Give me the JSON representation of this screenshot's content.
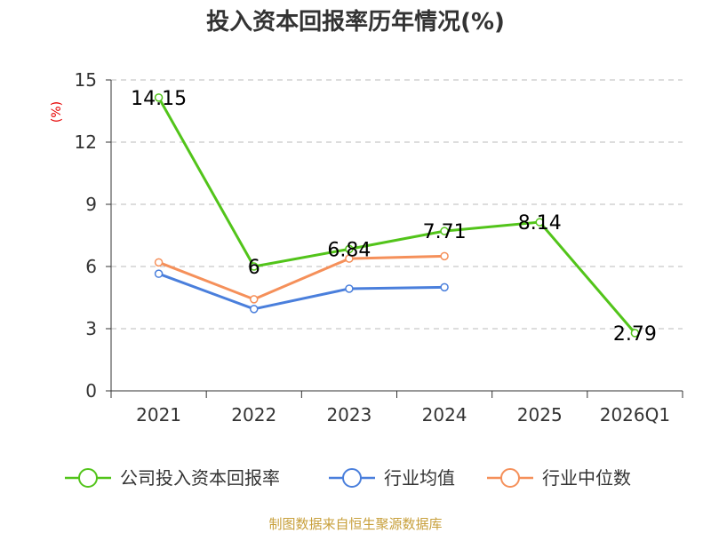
{
  "chart_data": {
    "type": "line",
    "title": "投入资本回报率历年情况(%)",
    "ylabel": "(%)",
    "xlabel": "",
    "categories": [
      "2021",
      "2022",
      "2023",
      "2024",
      "2025",
      "2026Q1"
    ],
    "yticks": [
      "0",
      "3",
      "6",
      "9",
      "12",
      "15"
    ],
    "ylim": [
      0,
      15
    ],
    "grid": true,
    "legend_position": "bottom",
    "series": [
      {
        "name": "公司投入资本回报率",
        "color": "#52c41a",
        "values": [
          14.15,
          6,
          6.84,
          7.71,
          8.14,
          2.79
        ],
        "labels": [
          "14.15",
          "6",
          "6.84",
          "7.71",
          "8.14",
          "2.79"
        ]
      },
      {
        "name": "行业均值",
        "color": "#4a7fdc",
        "values": [
          5.65,
          3.95,
          4.93,
          5.0,
          null,
          null
        ]
      },
      {
        "name": "行业中位数",
        "color": "#f5905a",
        "values": [
          6.2,
          4.42,
          6.38,
          6.5,
          null,
          null
        ]
      }
    ],
    "source": "制图数据来自恒生聚源数据库"
  }
}
